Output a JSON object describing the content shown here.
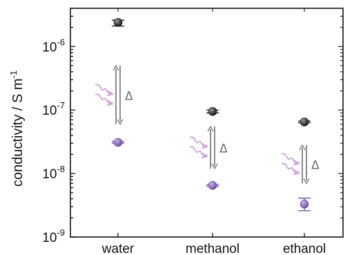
{
  "chart_data": {
    "type": "scatter",
    "title": "",
    "xlabel": "",
    "ylabel": "conductivity / S m",
    "ylabel_superscript": "-1",
    "yscale": "log",
    "ylim": [
      1e-09,
      4e-06
    ],
    "yticks": [
      {
        "value": 1e-09,
        "label": "10",
        "exp": "-9"
      },
      {
        "value": 1e-08,
        "label": "10",
        "exp": "-8"
      },
      {
        "value": 1e-07,
        "label": "10",
        "exp": "-7"
      },
      {
        "value": 1e-06,
        "label": "10",
        "exp": "-6"
      }
    ],
    "categories": [
      "water",
      "methanol",
      "ethanol"
    ],
    "series": [
      {
        "color": "#111111",
        "values": [
          2.4e-06,
          9.5e-08,
          6.5e-08
        ],
        "err_low": [
          2.1e-06,
          9e-08,
          6.3e-08
        ],
        "err_high": [
          2.6e-06,
          1e-07,
          6.7e-08
        ]
      },
      {
        "color": "#6b4aa0",
        "values": [
          3.1e-08,
          6.5e-09,
          3.3e-09
        ],
        "err_low": [
          3e-08,
          6.3e-09,
          2.6e-09
        ],
        "err_high": [
          3.2e-08,
          6.7e-09,
          4.1e-09
        ]
      }
    ],
    "annotations": [
      {
        "category": "water",
        "text": "Δ",
        "upper": 5e-07,
        "lower": 6e-08
      },
      {
        "category": "methanol",
        "text": "Δ",
        "upper": 5.5e-08,
        "lower": 1.2e-08
      },
      {
        "category": "ethanol",
        "text": "Δ",
        "upper": 2.8e-08,
        "lower": 7e-09
      }
    ],
    "grid": false,
    "legend": "none"
  },
  "colors": {
    "arrow_gray": "#8a8a8a",
    "light_purple": "#cfa3d8",
    "axis": "#111111"
  }
}
